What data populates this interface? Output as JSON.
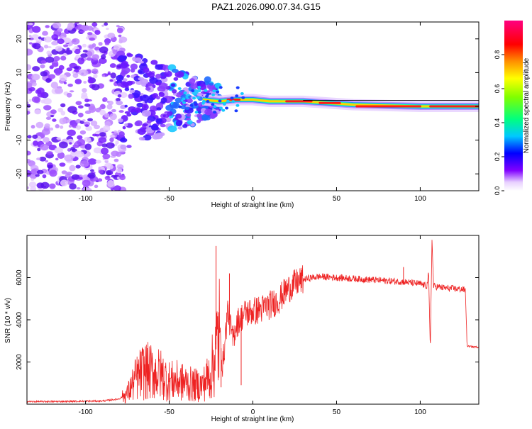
{
  "title": "PAZ1.2026.090.07.34.G15",
  "chart_data": [
    {
      "type": "heatmap",
      "name": "spectrogram",
      "xlabel": "Height of straight line (km)",
      "ylabel": "Frequency (Hz)",
      "xlim": [
        -135,
        135
      ],
      "ylim": [
        -25,
        25
      ],
      "xticks": [
        -100,
        -50,
        0,
        50,
        100
      ],
      "yticks": [
        -20,
        -10,
        0,
        10,
        20
      ],
      "colorbar": {
        "label": "Normalized spectral amplitude",
        "range": [
          0.0,
          1.0
        ],
        "ticks": [
          0.0,
          0.2,
          0.4,
          0.6,
          0.8
        ],
        "colors": [
          "#ffffff",
          "#8000ff",
          "#0000ff",
          "#00c0ff",
          "#00ff80",
          "#a0ff00",
          "#ffc000",
          "#ff0000",
          "#ff0080"
        ]
      },
      "ridge_frequency_hz": [
        {
          "x": -30,
          "f": 2.0
        },
        {
          "x": -20,
          "f": 1.5
        },
        {
          "x": -10,
          "f": 2.0
        },
        {
          "x": 0,
          "f": 2.0
        },
        {
          "x": 10,
          "f": 1.5
        },
        {
          "x": 30,
          "f": 1.5
        },
        {
          "x": 45,
          "f": 1.0
        },
        {
          "x": 60,
          "f": 0.5
        },
        {
          "x": 100,
          "f": 0.0
        },
        {
          "x": 135,
          "f": 0.0
        }
      ]
    },
    {
      "type": "line",
      "name": "snr",
      "xlabel": "Height of straight line (km)",
      "ylabel": "SNR (10 * v/v)",
      "xlim": [
        -135,
        135
      ],
      "ylim": [
        0,
        8000
      ],
      "xticks": [
        -100,
        -50,
        0,
        50,
        100
      ],
      "yticks": [
        2000,
        4000,
        6000
      ],
      "color": "#ee2222",
      "series": [
        {
          "x": -135,
          "y": 120
        },
        {
          "x": -110,
          "y": 130
        },
        {
          "x": -90,
          "y": 150
        },
        {
          "x": -80,
          "y": 250
        },
        {
          "x": -75,
          "y": 500
        },
        {
          "x": -70,
          "y": 1200
        },
        {
          "x": -65,
          "y": 1600
        },
        {
          "x": -60,
          "y": 1500
        },
        {
          "x": -55,
          "y": 1400
        },
        {
          "x": -50,
          "y": 1100
        },
        {
          "x": -45,
          "y": 1100
        },
        {
          "x": -40,
          "y": 1000
        },
        {
          "x": -35,
          "y": 900
        },
        {
          "x": -30,
          "y": 900
        },
        {
          "x": -25,
          "y": 1500
        },
        {
          "x": -22,
          "y": 2600
        },
        {
          "x": -20,
          "y": 3500
        },
        {
          "x": -18,
          "y": 1800
        },
        {
          "x": -15,
          "y": 4500
        },
        {
          "x": -12,
          "y": 3000
        },
        {
          "x": -10,
          "y": 3800
        },
        {
          "x": -5,
          "y": 4300
        },
        {
          "x": 0,
          "y": 4400
        },
        {
          "x": 5,
          "y": 4500
        },
        {
          "x": 10,
          "y": 4700
        },
        {
          "x": 15,
          "y": 4900
        },
        {
          "x": 20,
          "y": 5400
        },
        {
          "x": 25,
          "y": 5700
        },
        {
          "x": 30,
          "y": 5900
        },
        {
          "x": 35,
          "y": 6000
        },
        {
          "x": 40,
          "y": 6050
        },
        {
          "x": 50,
          "y": 6000
        },
        {
          "x": 60,
          "y": 5950
        },
        {
          "x": 70,
          "y": 5900
        },
        {
          "x": 80,
          "y": 5850
        },
        {
          "x": 90,
          "y": 5800
        },
        {
          "x": 100,
          "y": 5700
        },
        {
          "x": 104,
          "y": 5600
        },
        {
          "x": 105,
          "y": 6200
        },
        {
          "x": 106,
          "y": 2600
        },
        {
          "x": 107,
          "y": 7800
        },
        {
          "x": 108,
          "y": 5600
        },
        {
          "x": 115,
          "y": 5500
        },
        {
          "x": 125,
          "y": 5450
        },
        {
          "x": 127,
          "y": 5400
        },
        {
          "x": 128,
          "y": 2750
        },
        {
          "x": 135,
          "y": 2700
        }
      ],
      "spikes": [
        {
          "x": -22,
          "y": 7500
        },
        {
          "x": -19,
          "y": 800
        },
        {
          "x": -14,
          "y": 6200
        },
        {
          "x": -7,
          "y": 900
        },
        {
          "x": 90,
          "y": 6500
        }
      ]
    }
  ]
}
